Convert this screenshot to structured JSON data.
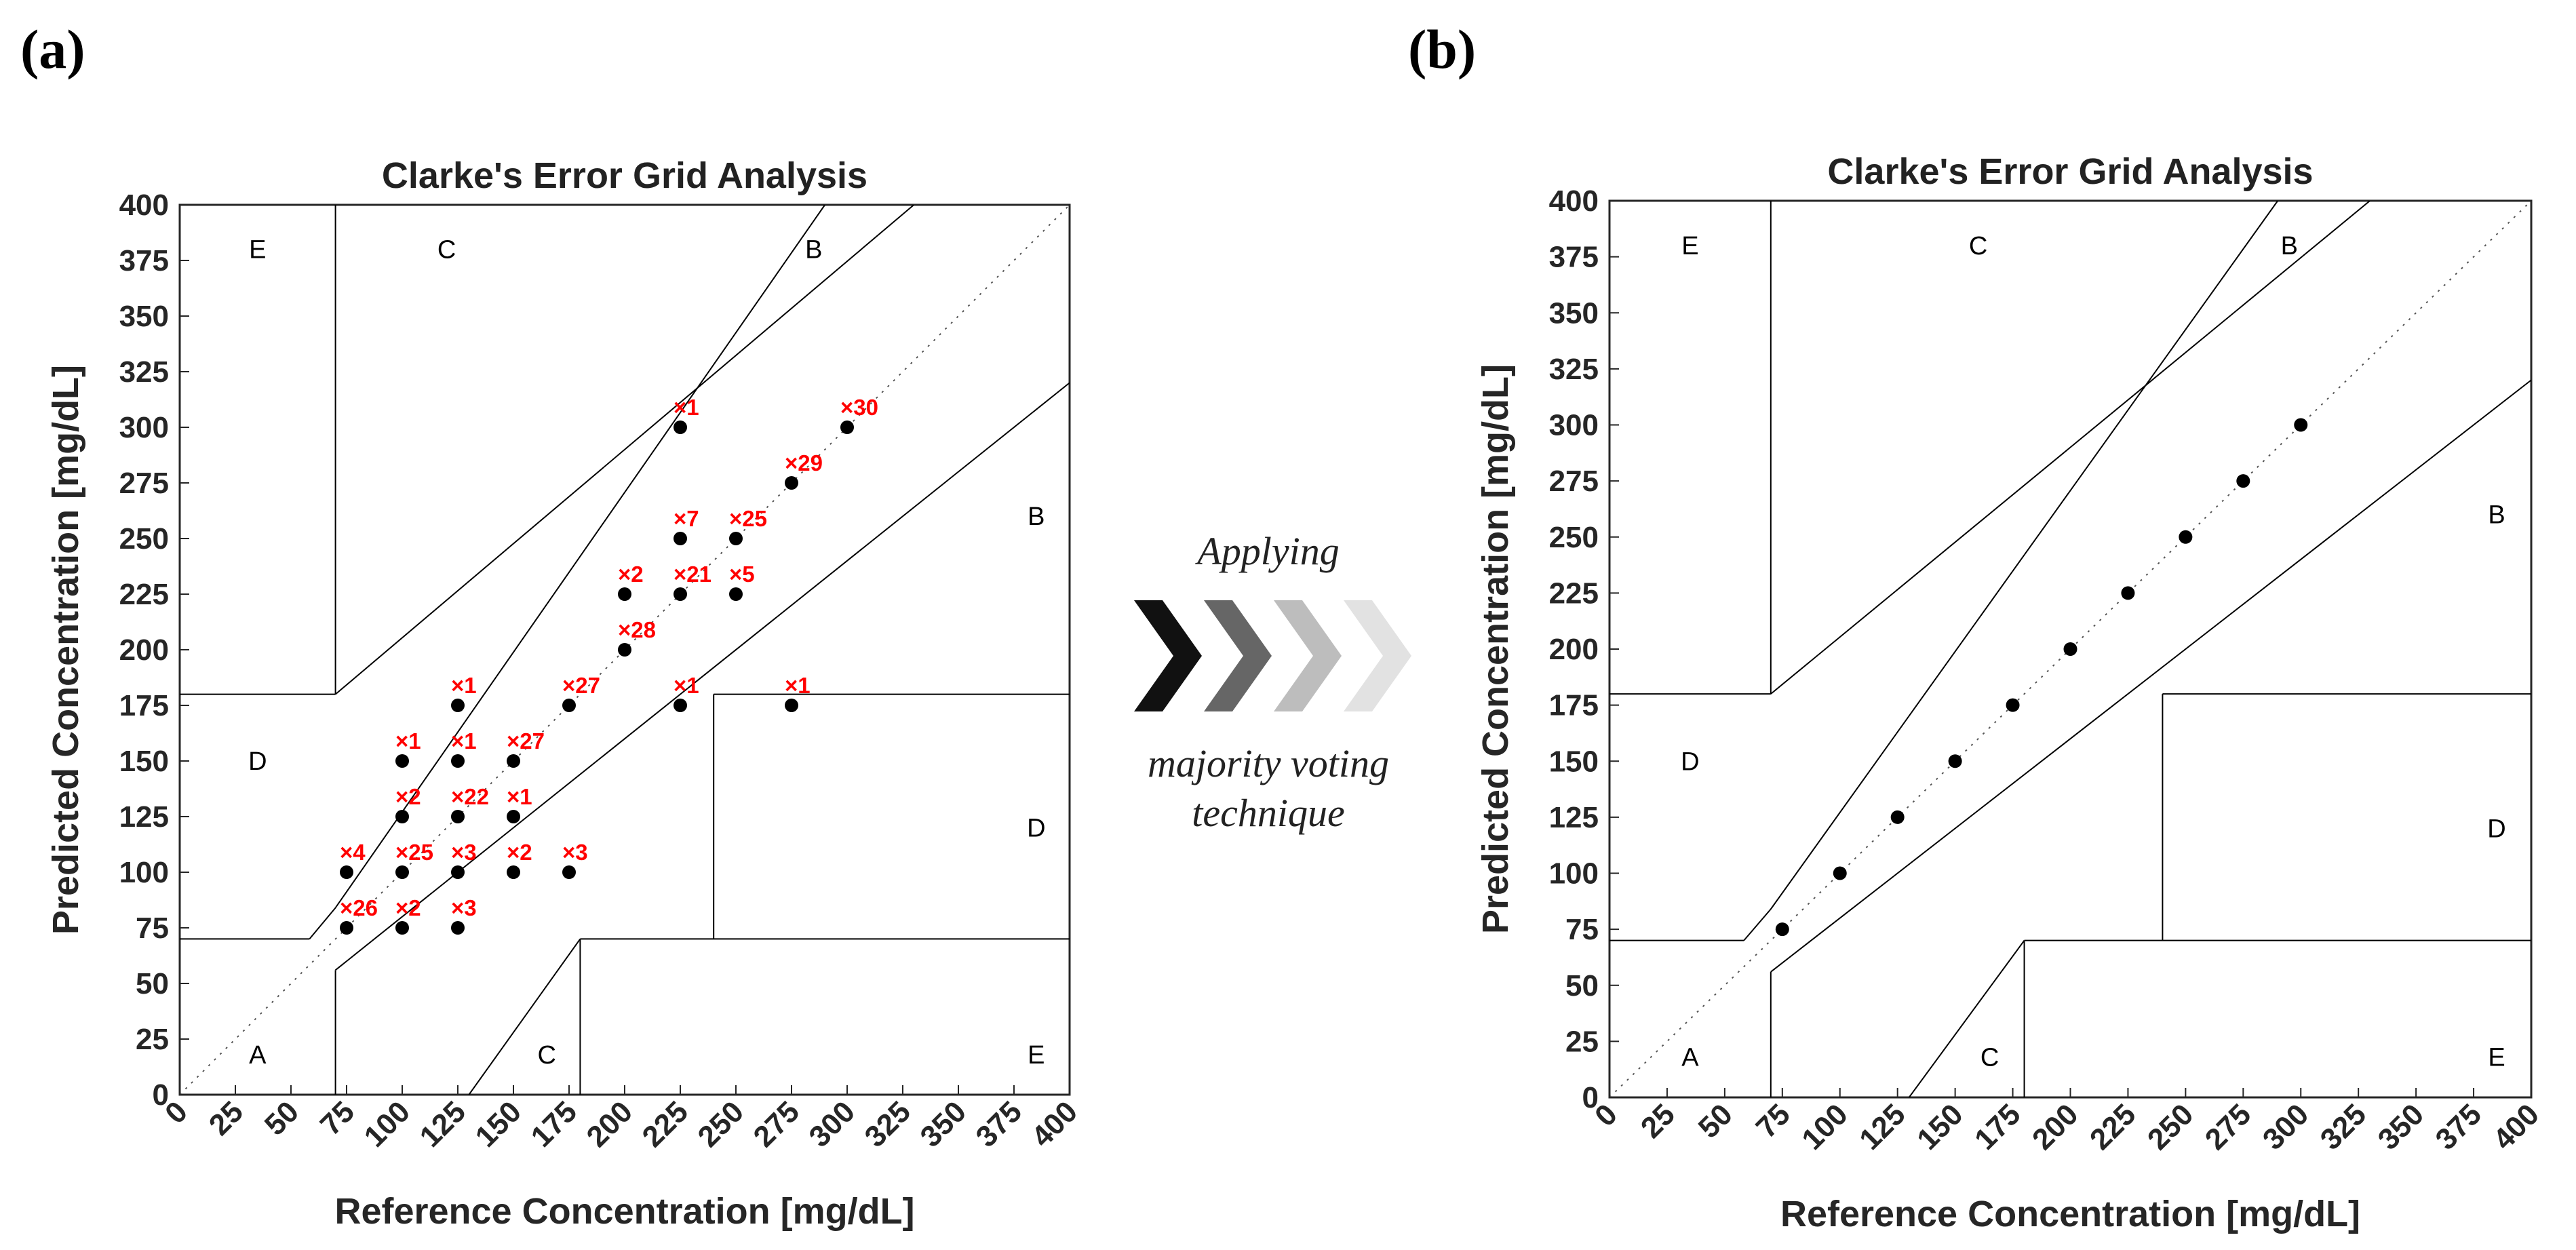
{
  "panels": [
    {
      "label": "(a)",
      "chart_data": {
        "type": "scatter",
        "title": "Clarke's Error Grid Analysis",
        "xlabel": "Reference Concentration [mg/dL]",
        "ylabel": "Predicted Concentration [mg/dL]",
        "xlim": [
          0,
          400
        ],
        "ylim": [
          0,
          400
        ],
        "xticks": [
          "0",
          "25",
          "50",
          "75",
          "100",
          "125",
          "150",
          "175",
          "200",
          "225",
          "250",
          "275",
          "300",
          "325",
          "350",
          "375",
          "400"
        ],
        "yticks": [
          "0",
          "25",
          "50",
          "75",
          "100",
          "125",
          "150",
          "175",
          "200",
          "225",
          "250",
          "275",
          "300",
          "325",
          "350",
          "375",
          "400"
        ],
        "zones": [
          {
            "label": "E",
            "x": 35,
            "y": 380
          },
          {
            "label": "C",
            "x": 120,
            "y": 380
          },
          {
            "label": "B",
            "x": 285,
            "y": 380
          },
          {
            "label": "B",
            "x": 385,
            "y": 260
          },
          {
            "label": "D",
            "x": 35,
            "y": 150
          },
          {
            "label": "D",
            "x": 385,
            "y": 120
          },
          {
            "label": "A",
            "x": 35,
            "y": 18
          },
          {
            "label": "C",
            "x": 165,
            "y": 18
          },
          {
            "label": "E",
            "x": 385,
            "y": 18
          }
        ],
        "points": [
          {
            "x": 225,
            "y": 300,
            "label": "×1"
          },
          {
            "x": 300,
            "y": 300,
            "label": "×30"
          },
          {
            "x": 275,
            "y": 275,
            "label": "×29"
          },
          {
            "x": 225,
            "y": 250,
            "label": "×7"
          },
          {
            "x": 250,
            "y": 250,
            "label": "×25"
          },
          {
            "x": 200,
            "y": 225,
            "label": "×2"
          },
          {
            "x": 225,
            "y": 225,
            "label": "×21"
          },
          {
            "x": 250,
            "y": 225,
            "label": "×5"
          },
          {
            "x": 200,
            "y": 200,
            "label": "×28"
          },
          {
            "x": 125,
            "y": 175,
            "label": "×1"
          },
          {
            "x": 175,
            "y": 175,
            "label": "×27"
          },
          {
            "x": 225,
            "y": 175,
            "label": "×1"
          },
          {
            "x": 275,
            "y": 175,
            "label": "×1"
          },
          {
            "x": 100,
            "y": 150,
            "label": "×1"
          },
          {
            "x": 125,
            "y": 150,
            "label": "×1"
          },
          {
            "x": 150,
            "y": 150,
            "label": "×27"
          },
          {
            "x": 100,
            "y": 125,
            "label": "×2"
          },
          {
            "x": 125,
            "y": 125,
            "label": "×22"
          },
          {
            "x": 150,
            "y": 125,
            "label": "×1"
          },
          {
            "x": 75,
            "y": 100,
            "label": "×4"
          },
          {
            "x": 100,
            "y": 100,
            "label": "×25"
          },
          {
            "x": 125,
            "y": 100,
            "label": "×3"
          },
          {
            "x": 150,
            "y": 100,
            "label": "×2"
          },
          {
            "x": 175,
            "y": 100,
            "label": "×3"
          },
          {
            "x": 75,
            "y": 75,
            "label": "×26"
          },
          {
            "x": 100,
            "y": 75,
            "label": "×2"
          },
          {
            "x": 125,
            "y": 75,
            "label": "×3"
          }
        ]
      }
    },
    {
      "label": "(b)",
      "chart_data": {
        "type": "scatter",
        "title": "Clarke's Error Grid Analysis",
        "xlabel": "Reference Concentration [mg/dL]",
        "ylabel": "Predicted Concentration [mg/dL]",
        "xlim": [
          0,
          400
        ],
        "ylim": [
          0,
          400
        ],
        "xticks": [
          "0",
          "25",
          "50",
          "75",
          "100",
          "125",
          "150",
          "175",
          "200",
          "225",
          "250",
          "275",
          "300",
          "325",
          "350",
          "375",
          "400"
        ],
        "yticks": [
          "0",
          "25",
          "50",
          "75",
          "100",
          "125",
          "150",
          "175",
          "200",
          "225",
          "250",
          "275",
          "300",
          "325",
          "350",
          "375",
          "400"
        ],
        "zones": [
          {
            "label": "E",
            "x": 35,
            "y": 380
          },
          {
            "label": "C",
            "x": 160,
            "y": 380
          },
          {
            "label": "B",
            "x": 295,
            "y": 380
          },
          {
            "label": "B",
            "x": 385,
            "y": 260
          },
          {
            "label": "D",
            "x": 35,
            "y": 150
          },
          {
            "label": "D",
            "x": 385,
            "y": 120
          },
          {
            "label": "A",
            "x": 35,
            "y": 18
          },
          {
            "label": "C",
            "x": 165,
            "y": 18
          },
          {
            "label": "E",
            "x": 385,
            "y": 18
          }
        ],
        "points": [
          {
            "x": 75,
            "y": 75
          },
          {
            "x": 100,
            "y": 100
          },
          {
            "x": 125,
            "y": 125
          },
          {
            "x": 150,
            "y": 150
          },
          {
            "x": 175,
            "y": 175
          },
          {
            "x": 200,
            "y": 200
          },
          {
            "x": 225,
            "y": 225
          },
          {
            "x": 250,
            "y": 250
          },
          {
            "x": 275,
            "y": 275
          },
          {
            "x": 300,
            "y": 300
          }
        ]
      }
    }
  ],
  "middle": {
    "line1": "Applying",
    "line2": "majority voting",
    "line3": "technique",
    "arrow_colors": [
      "#111111",
      "#666666",
      "#bdbdbd",
      "#e2e2e2"
    ]
  }
}
